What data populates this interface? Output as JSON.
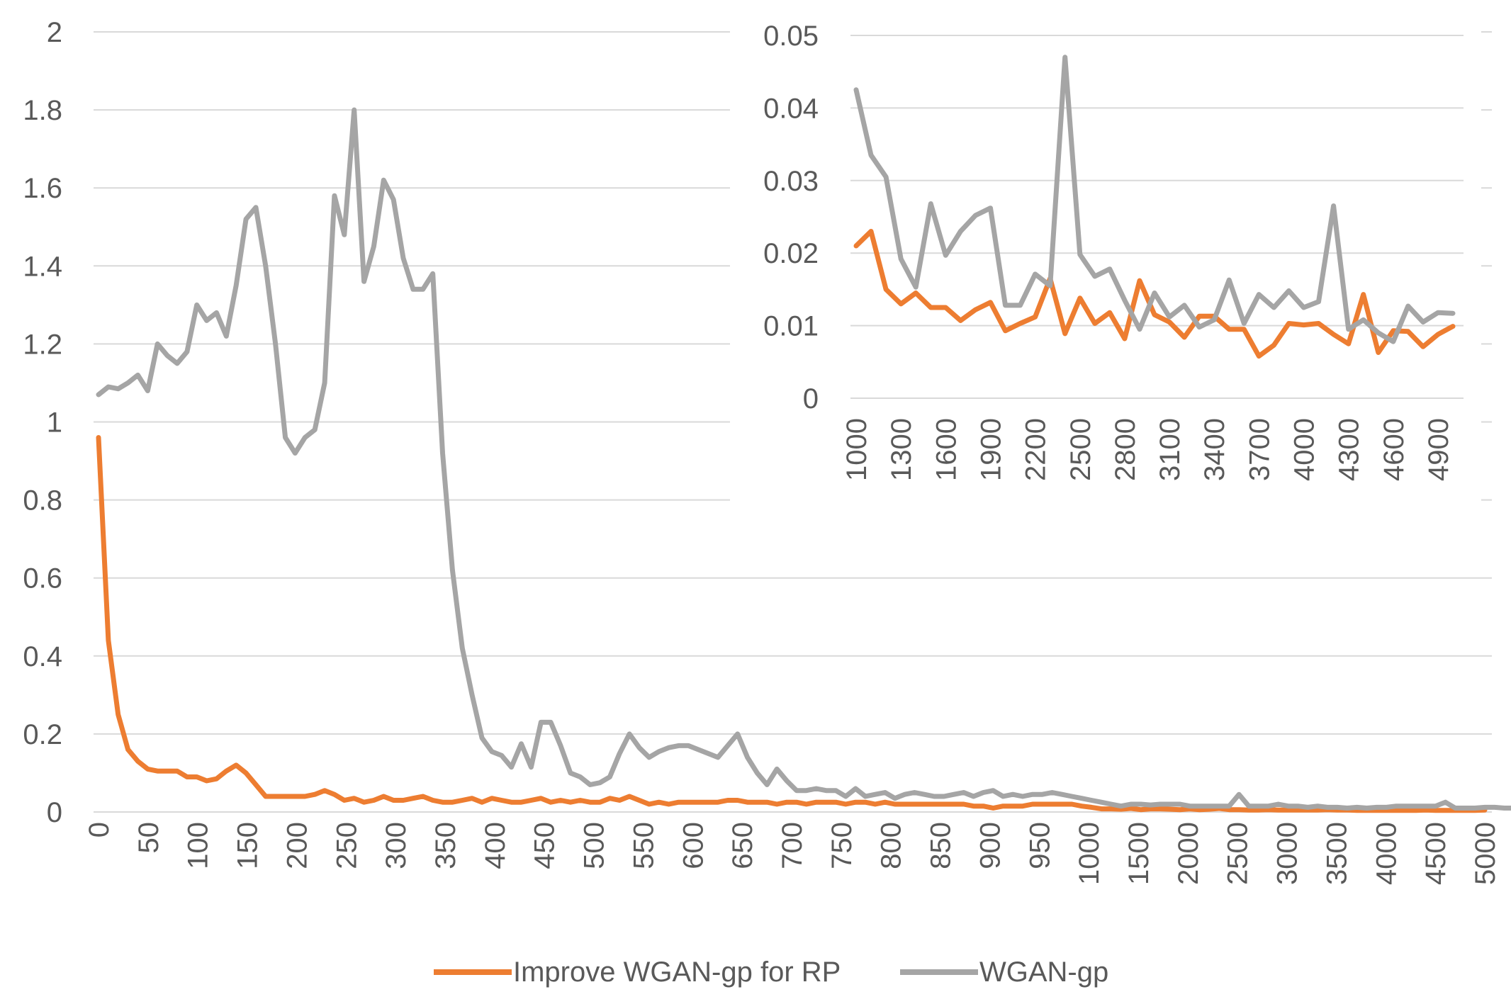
{
  "chart_data": [
    {
      "type": "line",
      "title": "",
      "xlabel": "",
      "ylabel": "",
      "ylim": [
        0,
        2
      ],
      "yticks": [
        "0",
        "0.2",
        "0.4",
        "0.6",
        "0.8",
        "1",
        "1.2",
        "1.4",
        "1.6",
        "1.8",
        "2"
      ],
      "xticks": [
        "0",
        "50",
        "100",
        "150",
        "200",
        "250",
        "300",
        "350",
        "400",
        "450",
        "500",
        "550",
        "600",
        "650",
        "700",
        "750",
        "800",
        "850",
        "900",
        "950",
        "1000",
        "1500",
        "2000",
        "2500",
        "3000",
        "3500",
        "4000",
        "4500",
        "5000"
      ],
      "grid": true,
      "legend_position": "bottom",
      "series": [
        {
          "name": "Improve WGAN-gp for RP",
          "color": "#ED7D31",
          "values": [
            0.96,
            0.44,
            0.25,
            0.16,
            0.13,
            0.11,
            0.105,
            0.105,
            0.105,
            0.09,
            0.09,
            0.08,
            0.085,
            0.105,
            0.12,
            0.1,
            0.07,
            0.04,
            0.04,
            0.04,
            0.04,
            0.04,
            0.045,
            0.055,
            0.045,
            0.03,
            0.035,
            0.025,
            0.03,
            0.04,
            0.03,
            0.03,
            0.035,
            0.04,
            0.03,
            0.025,
            0.025,
            0.03,
            0.035,
            0.025,
            0.035,
            0.03,
            0.025,
            0.025,
            0.03,
            0.035,
            0.025,
            0.03,
            0.025,
            0.03,
            0.025,
            0.025,
            0.035,
            0.03,
            0.04,
            0.03,
            0.02,
            0.025,
            0.02,
            0.025,
            0.025,
            0.025,
            0.025,
            0.025,
            0.03,
            0.03,
            0.025,
            0.025,
            0.025,
            0.02,
            0.025,
            0.025,
            0.02,
            0.025,
            0.025,
            0.025,
            0.02,
            0.025,
            0.025,
            0.02,
            0.025,
            0.02,
            0.02,
            0.02,
            0.02,
            0.02,
            0.02,
            0.02,
            0.02,
            0.015,
            0.015,
            0.01,
            0.015,
            0.015,
            0.015,
            0.02,
            0.02,
            0.02,
            0.02,
            0.02,
            0.015,
            0.012,
            0.008,
            0.008,
            0.007,
            0.009,
            0.006,
            0.008,
            0.008,
            0.007,
            0.006,
            0.008,
            0.006,
            0.007,
            0.009,
            0.006,
            0.006,
            0.005,
            0.005,
            0.006,
            0.005,
            0.005,
            0.005,
            0.005,
            0.005,
            0.006,
            0.005,
            0.005,
            0.004,
            0.004,
            0.004,
            0.004,
            0.004,
            0.004,
            0.004,
            0.005,
            0.004,
            0.004,
            0.004,
            0.004,
            0.004,
            0.005
          ]
        },
        {
          "name": "WGAN-gp",
          "color": "#A5A5A5",
          "values": [
            1.07,
            1.09,
            1.085,
            1.1,
            1.12,
            1.08,
            1.2,
            1.17,
            1.15,
            1.18,
            1.3,
            1.26,
            1.28,
            1.22,
            1.35,
            1.52,
            1.55,
            1.4,
            1.2,
            0.96,
            0.92,
            0.96,
            0.98,
            1.1,
            1.58,
            1.48,
            1.8,
            1.36,
            1.45,
            1.62,
            1.57,
            1.42,
            1.34,
            1.34,
            1.38,
            0.92,
            0.62,
            0.42,
            0.3,
            0.19,
            0.155,
            0.145,
            0.115,
            0.175,
            0.115,
            0.23,
            0.23,
            0.17,
            0.1,
            0.09,
            0.07,
            0.075,
            0.09,
            0.15,
            0.2,
            0.165,
            0.14,
            0.155,
            0.165,
            0.17,
            0.17,
            0.16,
            0.15,
            0.14,
            0.17,
            0.2,
            0.14,
            0.1,
            0.07,
            0.11,
            0.08,
            0.055,
            0.055,
            0.06,
            0.055,
            0.055,
            0.04,
            0.06,
            0.04,
            0.045,
            0.05,
            0.035,
            0.045,
            0.05,
            0.045,
            0.04,
            0.04,
            0.045,
            0.05,
            0.04,
            0.05,
            0.055,
            0.04,
            0.045,
            0.04,
            0.045,
            0.045,
            0.05,
            0.045,
            0.04,
            0.035,
            0.03,
            0.025,
            0.02,
            0.015,
            0.02,
            0.02,
            0.018,
            0.02,
            0.02,
            0.02,
            0.015,
            0.015,
            0.015,
            0.015,
            0.015,
            0.045,
            0.015,
            0.015,
            0.015,
            0.02,
            0.015,
            0.015,
            0.012,
            0.015,
            0.012,
            0.012,
            0.01,
            0.012,
            0.01,
            0.012,
            0.012,
            0.015,
            0.015,
            0.015,
            0.015,
            0.015,
            0.025,
            0.01,
            0.01,
            0.01,
            0.012,
            0.012,
            0.01,
            0.01,
            0.01
          ]
        }
      ]
    },
    {
      "type": "line",
      "title": "",
      "xlabel": "",
      "ylabel": "",
      "ylim": [
        0,
        0.05
      ],
      "yticks": [
        "0",
        "0.01",
        "0.02",
        "0.03",
        "0.04",
        "0.05"
      ],
      "xticks": [
        "1000",
        "1300",
        "1600",
        "1900",
        "2200",
        "2500",
        "2800",
        "3100",
        "3400",
        "3700",
        "4000",
        "4300",
        "4600",
        "4900"
      ],
      "xrange": [
        1000,
        5000
      ],
      "step": 100,
      "grid": true,
      "series": [
        {
          "name": "Improve WGAN-gp for RP",
          "color": "#ED7D31",
          "values": [
            0.021,
            0.023,
            0.015,
            0.013,
            0.0145,
            0.0125,
            0.0125,
            0.0107,
            0.0122,
            0.0132,
            0.0093,
            0.0103,
            0.0112,
            0.0165,
            0.0089,
            0.0138,
            0.0103,
            0.0118,
            0.0082,
            0.0162,
            0.0115,
            0.0105,
            0.0084,
            0.0113,
            0.0113,
            0.0095,
            0.0095,
            0.0058,
            0.0073,
            0.0103,
            0.0101,
            0.0103,
            0.0088,
            0.0075,
            0.0143,
            0.0063,
            0.0093,
            0.0092,
            0.0071,
            0.0088,
            0.0099
          ]
        },
        {
          "name": "WGAN-gp",
          "color": "#A5A5A5",
          "values": [
            0.0425,
            0.0335,
            0.0305,
            0.0192,
            0.0153,
            0.0268,
            0.0197,
            0.023,
            0.0252,
            0.0262,
            0.0128,
            0.0128,
            0.0171,
            0.0155,
            0.047,
            0.0198,
            0.0168,
            0.0178,
            0.0135,
            0.0095,
            0.0145,
            0.0112,
            0.0128,
            0.0098,
            0.0108,
            0.0163,
            0.0103,
            0.0143,
            0.0125,
            0.0148,
            0.0125,
            0.0133,
            0.0265,
            0.0095,
            0.0108,
            0.009,
            0.0078,
            0.0127,
            0.0105,
            0.0118,
            0.0117
          ]
        }
      ]
    }
  ]
}
